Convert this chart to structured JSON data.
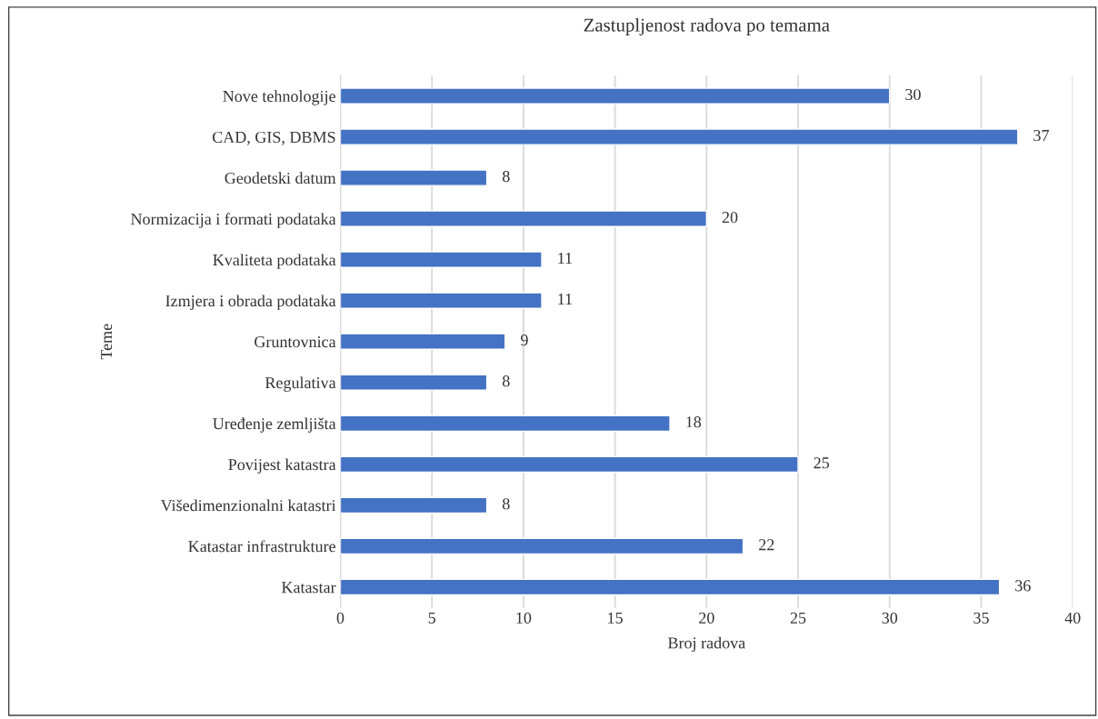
{
  "chart_data": {
    "type": "bar",
    "orientation": "horizontal",
    "title": "Zastupljenost radova po temama",
    "xlabel": "Broj radova",
    "ylabel": "Teme",
    "categories": [
      "Nove tehnologije",
      "CAD, GIS, DBMS",
      "Geodetski datum",
      "Normizacija i formati podataka",
      "Kvaliteta podataka",
      "Izmjera i obrada podataka",
      "Gruntovnica",
      "Regulativa",
      "Uređenje zemljišta",
      "Povijest katastra",
      "Višedimenzionalni katastri",
      "Katastar infrastrukture",
      "Katastar"
    ],
    "values": [
      30,
      37,
      8,
      20,
      11,
      11,
      9,
      8,
      18,
      25,
      8,
      22,
      36
    ],
    "color": "#4472c4",
    "xlim": [
      0,
      40
    ],
    "xticks": [
      0,
      5,
      10,
      15,
      20,
      25,
      30,
      35,
      40
    ],
    "grid": "x",
    "data_labels": true
  }
}
